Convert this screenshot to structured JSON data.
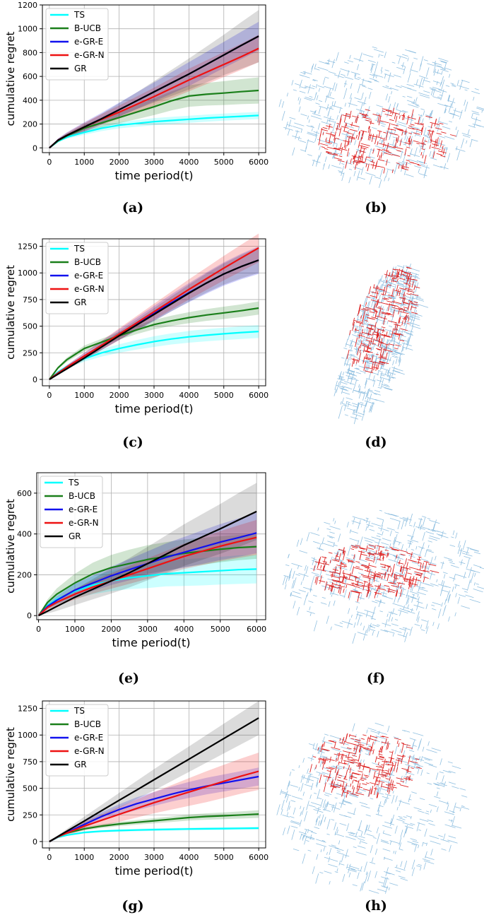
{
  "colors": {
    "TS": "#00ffff",
    "B-UCB": "#1a7f1a",
    "e-GR-E": "#1111ee",
    "e-GR-N": "#ee1111",
    "GR": "#000000",
    "map_base": "#8fbfe0",
    "map_highlight": "#dd2222"
  },
  "chart_data": [
    {
      "type": "line",
      "ylabel": "cumulative regret",
      "xlabel": "time period(t)",
      "x": [
        0,
        250,
        500,
        1000,
        1500,
        2000,
        2500,
        3000,
        3500,
        4000,
        4500,
        5000,
        5500,
        6000
      ],
      "xticks": [
        0,
        1000,
        2000,
        3000,
        4000,
        5000,
        6000
      ],
      "xlim": [
        -200,
        6200
      ],
      "yticks": [
        0,
        200,
        400,
        600,
        800,
        1000,
        1200
      ],
      "ylim": [
        -40,
        1200
      ],
      "legend_position": "top-left",
      "series": [
        {
          "name": "TS",
          "color_key": "TS",
          "values": [
            0,
            55,
            90,
            130,
            165,
            190,
            205,
            220,
            230,
            240,
            250,
            258,
            265,
            272
          ],
          "band": [
            0,
            8,
            14,
            20,
            24,
            26,
            28,
            30,
            30,
            30,
            30,
            30,
            30,
            30
          ]
        },
        {
          "name": "B-UCB",
          "color_key": "B-UCB",
          "values": [
            0,
            60,
            100,
            165,
            210,
            255,
            300,
            345,
            395,
            435,
            450,
            460,
            472,
            482
          ],
          "band": [
            0,
            10,
            18,
            28,
            38,
            48,
            60,
            70,
            80,
            90,
            95,
            100,
            105,
            110
          ]
        },
        {
          "name": "e-GR-E",
          "color_key": "e-GR-E",
          "values": [
            0,
            65,
            105,
            175,
            245,
            320,
            395,
            470,
            545,
            620,
            700,
            780,
            860,
            938
          ],
          "band": [
            0,
            15,
            25,
            40,
            50,
            60,
            70,
            80,
            90,
            100,
            105,
            110,
            115,
            120
          ]
        },
        {
          "name": "e-GR-N",
          "color_key": "e-GR-N",
          "values": [
            0,
            65,
            105,
            175,
            240,
            300,
            365,
            430,
            500,
            570,
            635,
            700,
            765,
            835
          ],
          "band": [
            0,
            12,
            22,
            35,
            45,
            55,
            65,
            75,
            85,
            95,
            100,
            105,
            110,
            115
          ]
        },
        {
          "name": "GR",
          "color_key": "GR",
          "values": [
            0,
            65,
            105,
            175,
            245,
            320,
            395,
            470,
            545,
            620,
            700,
            780,
            860,
            938
          ],
          "band": [
            0,
            10,
            18,
            28,
            40,
            55,
            70,
            90,
            110,
            130,
            150,
            170,
            195,
            220
          ]
        }
      ]
    },
    {
      "type": "line",
      "ylabel": "cumulative regret",
      "xlabel": "time period(t)",
      "x": [
        0,
        250,
        500,
        1000,
        1500,
        2000,
        2500,
        3000,
        3500,
        4000,
        4500,
        5000,
        5500,
        6000
      ],
      "xticks": [
        0,
        1000,
        2000,
        3000,
        4000,
        5000,
        6000
      ],
      "xlim": [
        -200,
        6200
      ],
      "yticks": [
        0,
        250,
        500,
        750,
        1000,
        1250
      ],
      "ylim": [
        -60,
        1320
      ],
      "legend_position": "top-left",
      "series": [
        {
          "name": "TS",
          "color_key": "TS",
          "values": [
            0,
            70,
            120,
            195,
            250,
            290,
            325,
            355,
            380,
            400,
            415,
            428,
            440,
            450
          ],
          "band": [
            0,
            10,
            18,
            28,
            35,
            40,
            45,
            50,
            52,
            55,
            57,
            58,
            60,
            60
          ]
        },
        {
          "name": "B-UCB",
          "color_key": "B-UCB",
          "values": [
            0,
            110,
            185,
            290,
            350,
            410,
            465,
            515,
            550,
            580,
            605,
            625,
            645,
            670
          ],
          "band": [
            0,
            12,
            20,
            28,
            32,
            36,
            40,
            44,
            48,
            52,
            55,
            58,
            60,
            62
          ]
        },
        {
          "name": "e-GR-E",
          "color_key": "e-GR-E",
          "values": [
            0,
            60,
            115,
            220,
            320,
            420,
            520,
            620,
            720,
            815,
            905,
            990,
            1060,
            1120
          ],
          "band": [
            0,
            10,
            18,
            30,
            40,
            50,
            60,
            70,
            80,
            90,
            100,
            110,
            120,
            130
          ]
        },
        {
          "name": "e-GR-N",
          "color_key": "e-GR-N",
          "values": [
            0,
            60,
            115,
            220,
            320,
            425,
            530,
            635,
            740,
            845,
            945,
            1045,
            1140,
            1235
          ],
          "band": [
            0,
            10,
            18,
            30,
            42,
            55,
            65,
            75,
            85,
            95,
            105,
            115,
            125,
            135
          ]
        },
        {
          "name": "GR",
          "color_key": "GR",
          "values": [
            0,
            50,
            100,
            200,
            305,
            410,
            510,
            610,
            710,
            810,
            905,
            990,
            1060,
            1120
          ],
          "band": [
            0,
            5,
            10,
            20,
            30,
            40,
            50,
            60,
            70,
            80,
            90,
            100,
            110,
            120
          ]
        }
      ]
    },
    {
      "type": "line",
      "ylabel": "cumulative regret",
      "xlabel": "time period(t)",
      "x": [
        0,
        250,
        500,
        1000,
        1500,
        2000,
        2500,
        3000,
        3500,
        4000,
        4500,
        5000,
        5500,
        6000
      ],
      "xticks": [
        0,
        1000,
        2000,
        3000,
        4000,
        5000,
        6000
      ],
      "xlim": [
        -50,
        6250
      ],
      "yticks": [
        0,
        200,
        400,
        600
      ],
      "ylim": [
        -20,
        700
      ],
      "legend_position": "top-left",
      "series": [
        {
          "name": "TS",
          "color_key": "TS",
          "values": [
            0,
            50,
            80,
            120,
            150,
            170,
            185,
            195,
            205,
            210,
            215,
            220,
            225,
            228
          ],
          "band": [
            0,
            15,
            25,
            35,
            45,
            50,
            55,
            60,
            62,
            65,
            67,
            68,
            70,
            70
          ]
        },
        {
          "name": "B-UCB",
          "color_key": "B-UCB",
          "values": [
            0,
            65,
            105,
            160,
            205,
            235,
            255,
            275,
            290,
            305,
            315,
            325,
            333,
            338
          ],
          "band": [
            0,
            15,
            28,
            45,
            55,
            62,
            68,
            70,
            70,
            68,
            66,
            64,
            62,
            60
          ]
        },
        {
          "name": "e-GR-E",
          "color_key": "e-GR-E",
          "values": [
            0,
            45,
            75,
            125,
            160,
            195,
            225,
            255,
            285,
            310,
            335,
            360,
            382,
            405
          ],
          "band": [
            0,
            12,
            20,
            30,
            38,
            45,
            52,
            60,
            68,
            75,
            82,
            88,
            94,
            100
          ]
        },
        {
          "name": "e-GR-N",
          "color_key": "e-GR-N",
          "values": [
            0,
            40,
            65,
            105,
            140,
            170,
            200,
            230,
            260,
            290,
            315,
            340,
            362,
            383
          ],
          "band": [
            0,
            10,
            18,
            26,
            32,
            38,
            44,
            50,
            56,
            62,
            68,
            74,
            80,
            86
          ]
        },
        {
          "name": "GR",
          "color_key": "GR",
          "values": [
            0,
            22,
            45,
            90,
            130,
            170,
            210,
            255,
            300,
            345,
            385,
            425,
            468,
            510
          ],
          "band": [
            0,
            12,
            22,
            38,
            50,
            62,
            72,
            82,
            92,
            102,
            112,
            122,
            132,
            140
          ]
        }
      ]
    },
    {
      "type": "line",
      "ylabel": "cumulative regret",
      "xlabel": "time period(t)",
      "x": [
        0,
        250,
        500,
        1000,
        1500,
        2000,
        2500,
        3000,
        3500,
        4000,
        4500,
        5000,
        5500,
        6000
      ],
      "xticks": [
        0,
        1000,
        2000,
        3000,
        4000,
        5000,
        6000
      ],
      "xlim": [
        -200,
        6200
      ],
      "yticks": [
        0,
        250,
        500,
        750,
        1000,
        1250
      ],
      "ylim": [
        -60,
        1320
      ],
      "legend_position": "top-left",
      "series": [
        {
          "name": "TS",
          "color_key": "TS",
          "values": [
            0,
            40,
            60,
            85,
            97,
            103,
            108,
            112,
            115,
            118,
            120,
            122,
            124,
            126
          ],
          "band": [
            0,
            5,
            8,
            10,
            11,
            12,
            12,
            13,
            13,
            13,
            14,
            14,
            14,
            14
          ]
        },
        {
          "name": "B-UCB",
          "color_key": "B-UCB",
          "values": [
            0,
            45,
            80,
            120,
            145,
            165,
            180,
            195,
            210,
            225,
            235,
            242,
            250,
            258
          ],
          "band": [
            0,
            6,
            10,
            15,
            18,
            20,
            22,
            24,
            26,
            28,
            30,
            32,
            34,
            36
          ]
        },
        {
          "name": "e-GR-E",
          "color_key": "e-GR-E",
          "values": [
            0,
            45,
            85,
            160,
            235,
            300,
            355,
            400,
            445,
            485,
            520,
            550,
            580,
            610
          ],
          "band": [
            0,
            10,
            18,
            30,
            40,
            50,
            60,
            65,
            70,
            75,
            78,
            80,
            82,
            85
          ]
        },
        {
          "name": "e-GR-N",
          "color_key": "e-GR-N",
          "values": [
            0,
            45,
            80,
            145,
            200,
            255,
            310,
            365,
            415,
            465,
            515,
            565,
            615,
            660
          ],
          "band": [
            0,
            12,
            22,
            38,
            55,
            70,
            85,
            100,
            115,
            130,
            145,
            155,
            165,
            175
          ]
        },
        {
          "name": "GR",
          "color_key": "GR",
          "values": [
            0,
            48,
            97,
            193,
            290,
            387,
            483,
            580,
            677,
            773,
            870,
            967,
            1063,
            1160
          ],
          "band": [
            0,
            12,
            22,
            40,
            55,
            70,
            85,
            100,
            110,
            120,
            130,
            140,
            150,
            160
          ]
        }
      ]
    }
  ],
  "captions": [
    "(a)",
    "(b)",
    "(c)",
    "(d)",
    "(e)",
    "(f)",
    "(g)",
    "(h)"
  ]
}
